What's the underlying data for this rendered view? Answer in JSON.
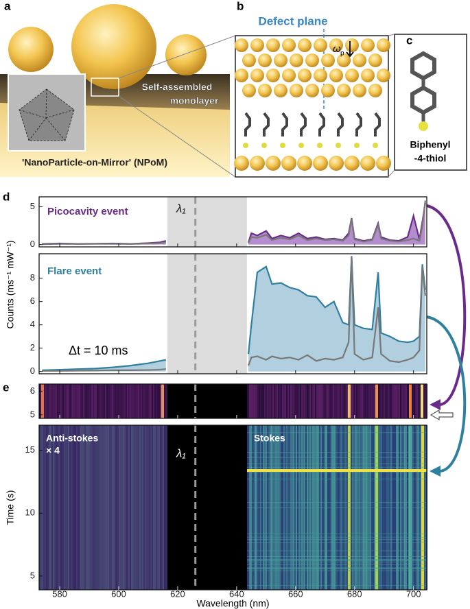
{
  "panel_a": {
    "label": "a",
    "annotation": [
      "Self-assembled",
      "monolayer"
    ],
    "caption": "'NanoParticle-on-Mirror' (NPoM)"
  },
  "panel_b": {
    "label": "b",
    "title": "Defect plane",
    "symbol": "ω",
    "symbol_sub": "p"
  },
  "panel_c": {
    "label": "c",
    "molecule": [
      "Biphenyl",
      "-4-thiol"
    ]
  },
  "panel_d_label": "d",
  "panel_e_label": "e",
  "chart_data": [
    {
      "type": "line",
      "title": "Picocavity event",
      "title_color": "#6a2a8a",
      "ylabel": "Counts (ms⁻¹ mW⁻¹)",
      "marker_label": "λ₁",
      "marker_x": 626,
      "band": [
        616.5,
        643.5
      ],
      "x": [
        574,
        580,
        586,
        592,
        598,
        604,
        610,
        614,
        616,
        630,
        644,
        645,
        647,
        650,
        652,
        655,
        658,
        661,
        664,
        667,
        670,
        673,
        676,
        678,
        679,
        680,
        683,
        686,
        688,
        689,
        692,
        695,
        698,
        700,
        702,
        703,
        704
      ],
      "xlim": [
        573,
        704.5
      ],
      "xticks": [
        580,
        600,
        620,
        640,
        660,
        680,
        700
      ],
      "ylim": [
        -0.3,
        6.3
      ],
      "yticks": [
        0,
        5
      ],
      "series": [
        {
          "color": "#6a2a8a",
          "fill": "#a070c0",
          "values": [
            0.1,
            0.15,
            0.1,
            0.12,
            0.15,
            0.1,
            0.2,
            0.3,
            0.5,
            null,
            0.3,
            1.5,
            1.2,
            1.8,
            0.8,
            1.2,
            0.9,
            1.5,
            0.8,
            1.0,
            0.7,
            0.8,
            0.6,
            1.5,
            3.5,
            0.8,
            0.5,
            0.7,
            2.8,
            1.0,
            0.6,
            0.5,
            1.0,
            3.8,
            0.7,
            3.0,
            5.5
          ]
        },
        {
          "color": "#777777",
          "values": [
            0.05,
            0.1,
            0.08,
            0.1,
            0.1,
            0.08,
            0.15,
            0.2,
            0.3,
            null,
            0.2,
            1.0,
            0.9,
            1.3,
            0.6,
            0.9,
            0.7,
            1.2,
            0.6,
            0.8,
            0.6,
            0.7,
            0.5,
            1.2,
            3.4,
            0.7,
            0.4,
            0.6,
            2.6,
            0.8,
            0.5,
            0.4,
            0.6,
            0.8,
            0.5,
            2.5,
            5.8
          ]
        }
      ]
    },
    {
      "type": "line",
      "title": "Flare event",
      "title_color": "#2f7f9f",
      "annotation": "Δt = 10 ms",
      "band": [
        616.5,
        643.5
      ],
      "marker_x": 626,
      "x": [
        574,
        580,
        586,
        592,
        598,
        604,
        610,
        614,
        616,
        630,
        644,
        645,
        647,
        650,
        652,
        655,
        658,
        661,
        664,
        667,
        670,
        673,
        676,
        678,
        679,
        680,
        683,
        686,
        688,
        689,
        692,
        695,
        698,
        700,
        702,
        703,
        704
      ],
      "xlim": [
        573,
        704.5
      ],
      "xticks": [
        580,
        600,
        620,
        640,
        660,
        680,
        700
      ],
      "ylim": [
        -0.2,
        10.1
      ],
      "yticks": [
        0,
        2,
        4,
        6,
        8
      ],
      "series": [
        {
          "color": "#2f7f9f",
          "fill": "#9dc3d6",
          "values": [
            0.1,
            0.15,
            0.2,
            0.25,
            0.35,
            0.5,
            0.7,
            0.9,
            1.0,
            null,
            1.5,
            4,
            8.5,
            9.0,
            7.5,
            7.6,
            7.2,
            7.0,
            6.5,
            6.4,
            5.5,
            6.0,
            4.2,
            4.0,
            9.9,
            4.0,
            3.7,
            3.6,
            8.5,
            3.3,
            3.0,
            2.6,
            2.5,
            2.6,
            3.0,
            9.2,
            7.0
          ]
        },
        {
          "color": "#777777",
          "values": [
            0.05,
            0.05,
            0.06,
            0.08,
            0.1,
            0.1,
            0.12,
            0.15,
            0.2,
            null,
            0.5,
            1.2,
            1.3,
            1.0,
            1.3,
            1.1,
            1.2,
            1.0,
            1.4,
            0.9,
            1.1,
            1.0,
            1.2,
            2.5,
            9.8,
            1.5,
            1.0,
            1.2,
            5.5,
            1.5,
            0.9,
            0.8,
            1.0,
            1.2,
            1.8,
            9.0,
            6.5
          ]
        }
      ]
    },
    {
      "type": "heatmap",
      "band": [
        616.5,
        643.5
      ],
      "marker_x": 626,
      "xlim": [
        573,
        704.5
      ],
      "xticks": [
        580,
        600,
        620,
        640,
        660,
        680,
        700
      ],
      "ylim": [
        4.85,
        6.3
      ],
      "yticks": [
        5,
        6
      ]
    },
    {
      "type": "heatmap",
      "band": [
        616.5,
        643.5
      ],
      "marker_x": 626,
      "marker_label": "λ₁",
      "xlim": [
        573,
        704.5
      ],
      "xticks": [
        580,
        600,
        620,
        640,
        660,
        680,
        700
      ],
      "ylim": [
        3.9,
        17.0
      ],
      "yticks": [
        5,
        10,
        15
      ],
      "ylabel": "Time (s)",
      "xlabel": "Wavelength (nm)",
      "annotations": [
        "Anti-stokes",
        "× 4",
        "Stokes"
      ]
    }
  ]
}
